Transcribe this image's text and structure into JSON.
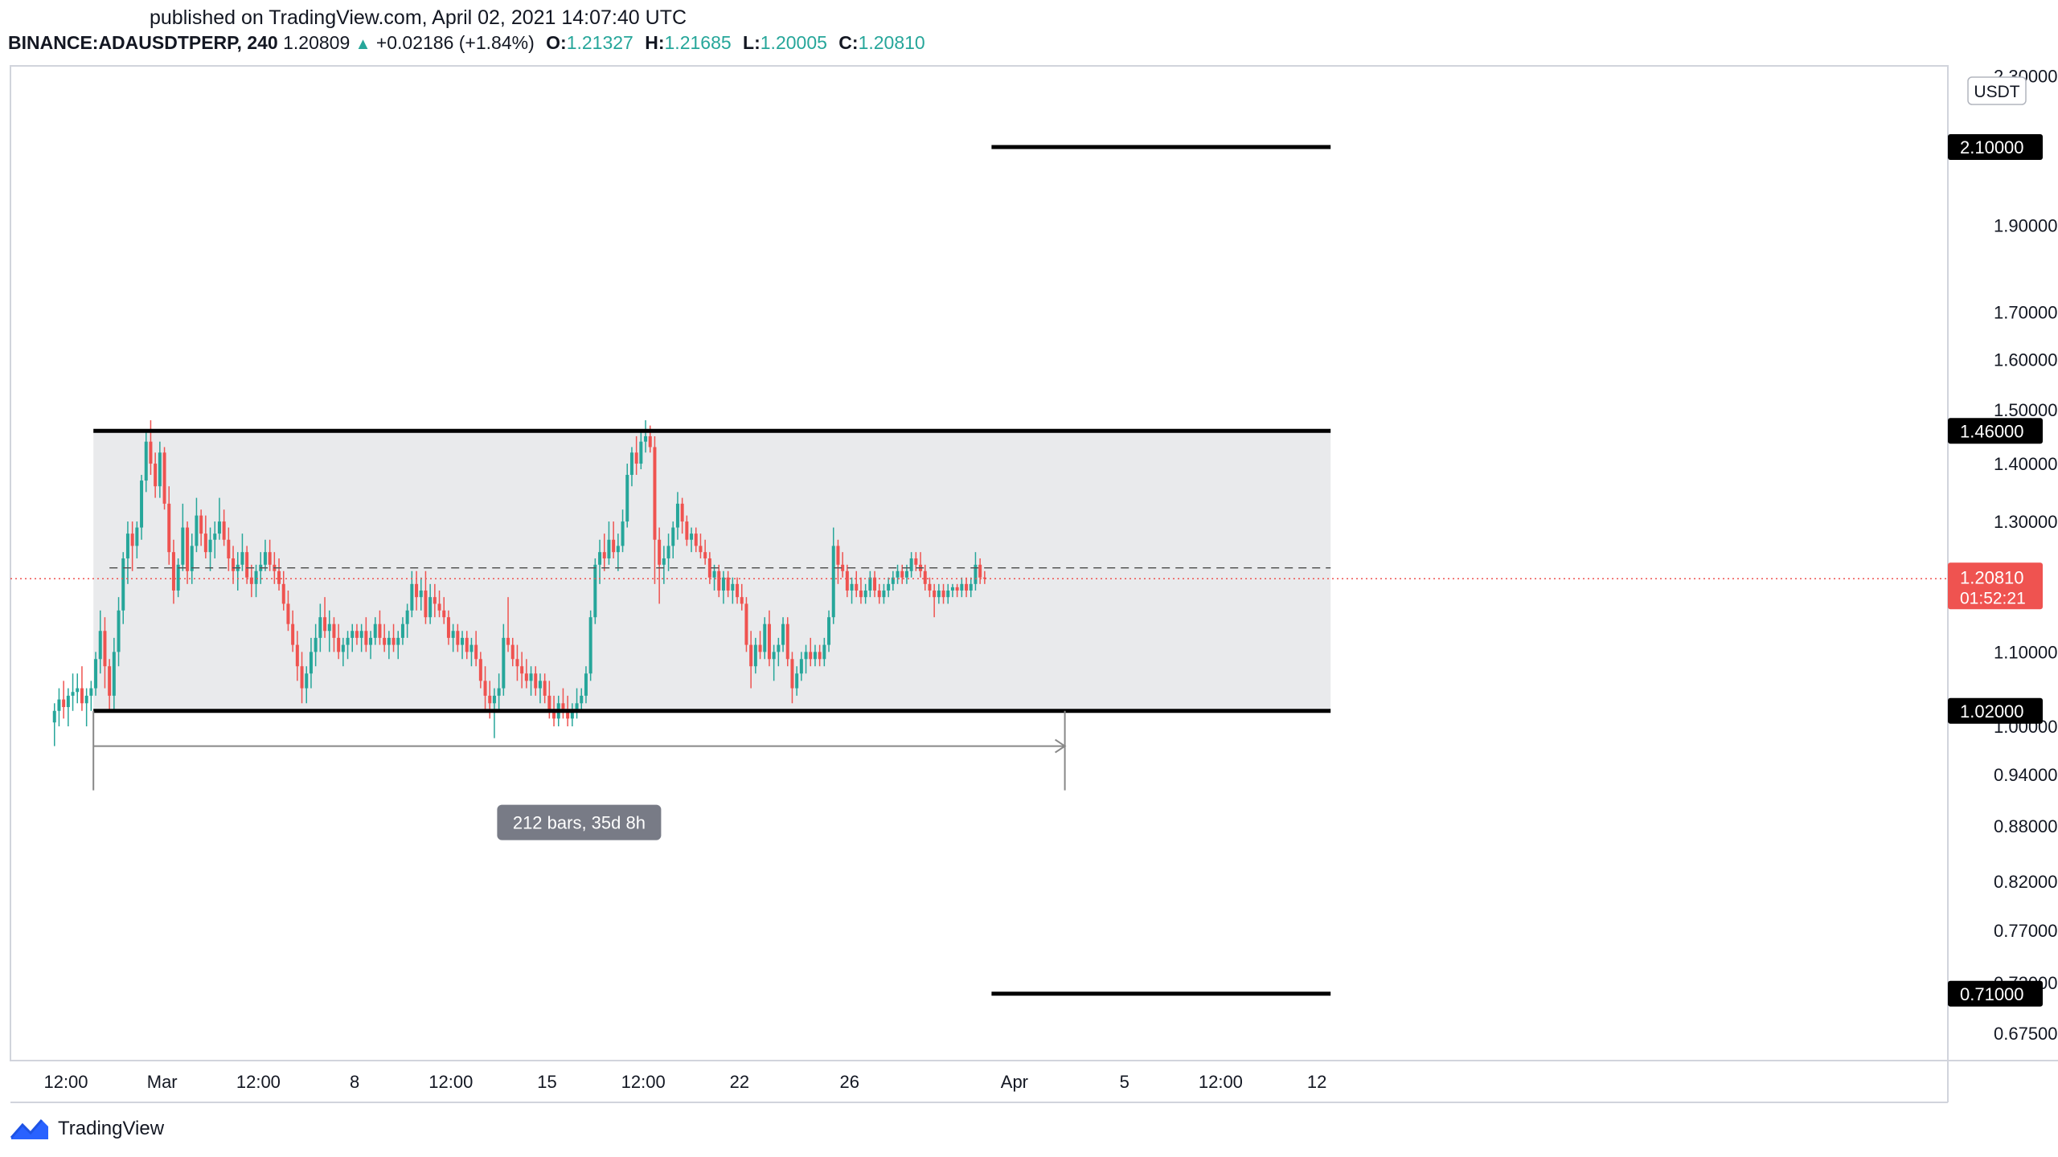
{
  "header": {
    "published": "published on TradingView.com, April 02, 2021 14:07:40 UTC",
    "symbol": "BINANCE:ADAUSDTPERP, 240",
    "last": "1.20809",
    "change": "+0.02186 (+1.84%)",
    "o_label": "O:",
    "o": "1.21327",
    "h_label": "H:",
    "h": "1.21685",
    "l_label": "L:",
    "l": "1.20005",
    "c_label": "C:",
    "c": "1.20810"
  },
  "brand": {
    "name": "TradingView",
    "icon": "tradingview-logo-icon"
  },
  "colors": {
    "up": "#26a69a",
    "down": "#ef5350",
    "level_line": "#000000",
    "range_fill": "#e9eaec",
    "price_label_bg": "#ef5350"
  },
  "chart_data": {
    "type": "candlestick",
    "symbol": "BINANCE:ADAUSDTPERP",
    "interval": "240",
    "currency": "USDT",
    "y_scale": "log",
    "grid": false,
    "y_ticks": [
      "2.30000",
      "1.90000",
      "1.70000",
      "1.60000",
      "1.50000",
      "1.40000",
      "1.30000",
      "1.10000",
      "1.00000",
      "0.94000",
      "0.88000",
      "0.82000",
      "0.77000",
      "0.72000",
      "0.67500"
    ],
    "x_ticks": [
      {
        "label": "12:00",
        "date": "2021-02-25 12:00"
      },
      {
        "label": "Mar",
        "date": "2021-03-01 00:00"
      },
      {
        "label": "12:00",
        "date": "2021-03-04 12:00"
      },
      {
        "label": "8",
        "date": "2021-03-08 00:00"
      },
      {
        "label": "12:00",
        "date": "2021-03-11 12:00"
      },
      {
        "label": "15",
        "date": "2021-03-15 00:00"
      },
      {
        "label": "12:00",
        "date": "2021-03-18 12:00"
      },
      {
        "label": "22",
        "date": "2021-03-22 00:00"
      },
      {
        "label": "26",
        "date": "2021-03-26 00:00"
      },
      {
        "label": "Apr",
        "date": "2021-04-01 00:00"
      },
      {
        "label": "5",
        "date": "2021-04-05 00:00"
      },
      {
        "label": "12:00",
        "date": "2021-04-08 12:00"
      },
      {
        "label": "12",
        "date": "2021-04-12 00:00"
      }
    ],
    "levels": [
      {
        "price": 2.1,
        "label": "2.10000",
        "start": "2021-03-31 04:00",
        "end": "2021-04-12 12:00"
      },
      {
        "price": 1.46,
        "label": "1.46000",
        "start": "2021-02-26 12:00",
        "end": "2021-04-12 12:00"
      },
      {
        "price": 1.02,
        "label": "1.02000",
        "start": "2021-02-26 12:00",
        "end": "2021-04-12 12:00"
      },
      {
        "price": 0.71,
        "label": "0.71000",
        "start": "2021-03-31 04:00",
        "end": "2021-04-12 12:00"
      }
    ],
    "range_box": {
      "top": 1.46,
      "bottom": 1.02,
      "start": "2021-02-26 12:00",
      "end": "2021-04-12 12:00"
    },
    "current_price": {
      "value": 1.2081,
      "label": "1.20810",
      "countdown": "01:52:21"
    },
    "measure": {
      "start": "2021-02-26 12:00",
      "end": "2021-04-02 20:00",
      "price": 0.975,
      "label": "212 bars, 35d 8h"
    },
    "candles_ohlc": [
      [
        1.005,
        1.03,
        0.975,
        1.02
      ],
      [
        1.02,
        1.05,
        1.0,
        1.035
      ],
      [
        1.035,
        1.06,
        1.01,
        1.025
      ],
      [
        1.025,
        1.05,
        1.0,
        1.04
      ],
      [
        1.04,
        1.07,
        1.02,
        1.045
      ],
      [
        1.045,
        1.07,
        1.03,
        1.05
      ],
      [
        1.05,
        1.08,
        1.02,
        1.03
      ],
      [
        1.03,
        1.05,
        1.0,
        1.04
      ],
      [
        1.04,
        1.06,
        1.02,
        1.05
      ],
      [
        1.05,
        1.1,
        1.04,
        1.09
      ],
      [
        1.09,
        1.16,
        1.07,
        1.13
      ],
      [
        1.13,
        1.15,
        1.05,
        1.08
      ],
      [
        1.08,
        1.09,
        1.02,
        1.04
      ],
      [
        1.04,
        1.12,
        1.02,
        1.1
      ],
      [
        1.1,
        1.18,
        1.08,
        1.16
      ],
      [
        1.16,
        1.25,
        1.14,
        1.24
      ],
      [
        1.24,
        1.3,
        1.2,
        1.28
      ],
      [
        1.28,
        1.3,
        1.22,
        1.26
      ],
      [
        1.26,
        1.3,
        1.24,
        1.29
      ],
      [
        1.29,
        1.38,
        1.27,
        1.37
      ],
      [
        1.37,
        1.46,
        1.35,
        1.44
      ],
      [
        1.44,
        1.48,
        1.38,
        1.4
      ],
      [
        1.4,
        1.42,
        1.34,
        1.36
      ],
      [
        1.36,
        1.44,
        1.34,
        1.42
      ],
      [
        1.42,
        1.43,
        1.32,
        1.33
      ],
      [
        1.33,
        1.36,
        1.23,
        1.25
      ],
      [
        1.25,
        1.27,
        1.17,
        1.19
      ],
      [
        1.19,
        1.24,
        1.18,
        1.23
      ],
      [
        1.23,
        1.33,
        1.22,
        1.29
      ],
      [
        1.29,
        1.3,
        1.2,
        1.22
      ],
      [
        1.22,
        1.28,
        1.2,
        1.26
      ],
      [
        1.26,
        1.34,
        1.25,
        1.31
      ],
      [
        1.31,
        1.32,
        1.26,
        1.28
      ],
      [
        1.28,
        1.31,
        1.24,
        1.25
      ],
      [
        1.25,
        1.29,
        1.22,
        1.27
      ],
      [
        1.27,
        1.3,
        1.24,
        1.28
      ],
      [
        1.28,
        1.34,
        1.27,
        1.3
      ],
      [
        1.3,
        1.32,
        1.26,
        1.27
      ],
      [
        1.27,
        1.29,
        1.22,
        1.24
      ],
      [
        1.24,
        1.26,
        1.2,
        1.22
      ],
      [
        1.22,
        1.25,
        1.19,
        1.23
      ],
      [
        1.23,
        1.28,
        1.22,
        1.25
      ],
      [
        1.25,
        1.26,
        1.2,
        1.21
      ],
      [
        1.21,
        1.23,
        1.18,
        1.2
      ],
      [
        1.2,
        1.23,
        1.18,
        1.22
      ],
      [
        1.22,
        1.25,
        1.2,
        1.23
      ],
      [
        1.23,
        1.27,
        1.22,
        1.25
      ],
      [
        1.25,
        1.27,
        1.22,
        1.23
      ],
      [
        1.23,
        1.25,
        1.2,
        1.22
      ],
      [
        1.22,
        1.24,
        1.19,
        1.2
      ],
      [
        1.2,
        1.22,
        1.16,
        1.17
      ],
      [
        1.17,
        1.19,
        1.13,
        1.14
      ],
      [
        1.14,
        1.16,
        1.1,
        1.11
      ],
      [
        1.11,
        1.13,
        1.06,
        1.08
      ],
      [
        1.08,
        1.1,
        1.03,
        1.05
      ],
      [
        1.05,
        1.08,
        1.03,
        1.07
      ],
      [
        1.07,
        1.12,
        1.05,
        1.1
      ],
      [
        1.1,
        1.14,
        1.08,
        1.12
      ],
      [
        1.12,
        1.17,
        1.1,
        1.15
      ],
      [
        1.15,
        1.18,
        1.12,
        1.13
      ],
      [
        1.13,
        1.16,
        1.1,
        1.14
      ],
      [
        1.14,
        1.15,
        1.1,
        1.12
      ],
      [
        1.12,
        1.14,
        1.09,
        1.1
      ],
      [
        1.1,
        1.12,
        1.08,
        1.11
      ],
      [
        1.11,
        1.13,
        1.09,
        1.12
      ],
      [
        1.12,
        1.14,
        1.1,
        1.13
      ],
      [
        1.13,
        1.14,
        1.11,
        1.12
      ],
      [
        1.12,
        1.14,
        1.1,
        1.13
      ],
      [
        1.13,
        1.15,
        1.1,
        1.11
      ],
      [
        1.11,
        1.13,
        1.09,
        1.12
      ],
      [
        1.12,
        1.15,
        1.11,
        1.14
      ],
      [
        1.14,
        1.16,
        1.11,
        1.12
      ],
      [
        1.12,
        1.14,
        1.1,
        1.11
      ],
      [
        1.11,
        1.13,
        1.09,
        1.12
      ],
      [
        1.12,
        1.14,
        1.1,
        1.11
      ],
      [
        1.11,
        1.13,
        1.09,
        1.12
      ],
      [
        1.12,
        1.15,
        1.11,
        1.14
      ],
      [
        1.14,
        1.17,
        1.12,
        1.16
      ],
      [
        1.16,
        1.22,
        1.15,
        1.2
      ],
      [
        1.2,
        1.22,
        1.16,
        1.18
      ],
      [
        1.18,
        1.21,
        1.16,
        1.19
      ],
      [
        1.19,
        1.22,
        1.14,
        1.15
      ],
      [
        1.15,
        1.2,
        1.14,
        1.18
      ],
      [
        1.18,
        1.2,
        1.15,
        1.17
      ],
      [
        1.17,
        1.19,
        1.15,
        1.16
      ],
      [
        1.16,
        1.18,
        1.14,
        1.15
      ],
      [
        1.15,
        1.16,
        1.11,
        1.12
      ],
      [
        1.12,
        1.14,
        1.1,
        1.13
      ],
      [
        1.13,
        1.14,
        1.1,
        1.11
      ],
      [
        1.11,
        1.13,
        1.09,
        1.12
      ],
      [
        1.12,
        1.13,
        1.09,
        1.1
      ],
      [
        1.1,
        1.12,
        1.08,
        1.11
      ],
      [
        1.11,
        1.13,
        1.08,
        1.09
      ],
      [
        1.09,
        1.1,
        1.05,
        1.06
      ],
      [
        1.06,
        1.08,
        1.02,
        1.04
      ],
      [
        1.04,
        1.06,
        1.01,
        1.03
      ],
      [
        1.03,
        1.05,
        0.985,
        1.04
      ],
      [
        1.04,
        1.07,
        1.02,
        1.05
      ],
      [
        1.05,
        1.14,
        1.04,
        1.12
      ],
      [
        1.12,
        1.18,
        1.1,
        1.11
      ],
      [
        1.11,
        1.12,
        1.08,
        1.09
      ],
      [
        1.09,
        1.11,
        1.06,
        1.08
      ],
      [
        1.08,
        1.1,
        1.05,
        1.07
      ],
      [
        1.07,
        1.09,
        1.05,
        1.06
      ],
      [
        1.06,
        1.08,
        1.04,
        1.07
      ],
      [
        1.07,
        1.08,
        1.04,
        1.05
      ],
      [
        1.05,
        1.07,
        1.03,
        1.06
      ],
      [
        1.06,
        1.07,
        1.03,
        1.04
      ],
      [
        1.04,
        1.06,
        1.01,
        1.02
      ],
      [
        1.02,
        1.04,
        1.0,
        1.01
      ],
      [
        1.01,
        1.04,
        1.0,
        1.03
      ],
      [
        1.03,
        1.05,
        1.01,
        1.02
      ],
      [
        1.02,
        1.04,
        1.0,
        1.01
      ],
      [
        1.01,
        1.03,
        1.0,
        1.02
      ],
      [
        1.02,
        1.05,
        1.01,
        1.03
      ],
      [
        1.03,
        1.05,
        1.02,
        1.04
      ],
      [
        1.04,
        1.08,
        1.03,
        1.07
      ],
      [
        1.07,
        1.16,
        1.06,
        1.15
      ],
      [
        1.15,
        1.24,
        1.14,
        1.23
      ],
      [
        1.23,
        1.27,
        1.2,
        1.25
      ],
      [
        1.25,
        1.28,
        1.22,
        1.24
      ],
      [
        1.24,
        1.3,
        1.23,
        1.27
      ],
      [
        1.27,
        1.3,
        1.24,
        1.25
      ],
      [
        1.25,
        1.28,
        1.22,
        1.26
      ],
      [
        1.26,
        1.32,
        1.25,
        1.3
      ],
      [
        1.3,
        1.4,
        1.29,
        1.38
      ],
      [
        1.38,
        1.43,
        1.36,
        1.42
      ],
      [
        1.42,
        1.45,
        1.38,
        1.4
      ],
      [
        1.4,
        1.46,
        1.39,
        1.44
      ],
      [
        1.44,
        1.48,
        1.42,
        1.45
      ],
      [
        1.45,
        1.47,
        1.42,
        1.43
      ],
      [
        1.43,
        1.45,
        1.2,
        1.27
      ],
      [
        1.27,
        1.29,
        1.17,
        1.23
      ],
      [
        1.23,
        1.26,
        1.2,
        1.24
      ],
      [
        1.24,
        1.28,
        1.22,
        1.26
      ],
      [
        1.26,
        1.3,
        1.24,
        1.29
      ],
      [
        1.29,
        1.35,
        1.27,
        1.33
      ],
      [
        1.33,
        1.34,
        1.28,
        1.3
      ],
      [
        1.3,
        1.31,
        1.26,
        1.27
      ],
      [
        1.27,
        1.29,
        1.25,
        1.28
      ],
      [
        1.28,
        1.29,
        1.25,
        1.26
      ],
      [
        1.26,
        1.28,
        1.24,
        1.25
      ],
      [
        1.25,
        1.27,
        1.23,
        1.24
      ],
      [
        1.24,
        1.25,
        1.2,
        1.21
      ],
      [
        1.21,
        1.23,
        1.19,
        1.22
      ],
      [
        1.22,
        1.23,
        1.18,
        1.19
      ],
      [
        1.19,
        1.22,
        1.17,
        1.21
      ],
      [
        1.21,
        1.22,
        1.18,
        1.19
      ],
      [
        1.19,
        1.21,
        1.17,
        1.2
      ],
      [
        1.2,
        1.21,
        1.17,
        1.18
      ],
      [
        1.18,
        1.2,
        1.16,
        1.17
      ],
      [
        1.17,
        1.18,
        1.1,
        1.11
      ],
      [
        1.11,
        1.13,
        1.05,
        1.08
      ],
      [
        1.08,
        1.12,
        1.07,
        1.11
      ],
      [
        1.11,
        1.13,
        1.09,
        1.1
      ],
      [
        1.1,
        1.15,
        1.09,
        1.14
      ],
      [
        1.14,
        1.16,
        1.08,
        1.09
      ],
      [
        1.09,
        1.11,
        1.06,
        1.1
      ],
      [
        1.1,
        1.12,
        1.08,
        1.11
      ],
      [
        1.11,
        1.15,
        1.1,
        1.14
      ],
      [
        1.14,
        1.15,
        1.08,
        1.09
      ],
      [
        1.09,
        1.1,
        1.03,
        1.05
      ],
      [
        1.05,
        1.08,
        1.04,
        1.07
      ],
      [
        1.07,
        1.1,
        1.06,
        1.09
      ],
      [
        1.09,
        1.11,
        1.07,
        1.1
      ],
      [
        1.1,
        1.12,
        1.08,
        1.09
      ],
      [
        1.09,
        1.11,
        1.08,
        1.1
      ],
      [
        1.1,
        1.11,
        1.08,
        1.09
      ],
      [
        1.09,
        1.12,
        1.08,
        1.11
      ],
      [
        1.11,
        1.16,
        1.1,
        1.15
      ],
      [
        1.15,
        1.29,
        1.14,
        1.26
      ],
      [
        1.26,
        1.27,
        1.2,
        1.23
      ],
      [
        1.23,
        1.25,
        1.21,
        1.22
      ],
      [
        1.22,
        1.23,
        1.18,
        1.19
      ],
      [
        1.19,
        1.21,
        1.17,
        1.2
      ],
      [
        1.2,
        1.22,
        1.18,
        1.19
      ],
      [
        1.19,
        1.21,
        1.17,
        1.18
      ],
      [
        1.18,
        1.2,
        1.17,
        1.19
      ],
      [
        1.19,
        1.22,
        1.18,
        1.21
      ],
      [
        1.21,
        1.22,
        1.18,
        1.19
      ],
      [
        1.19,
        1.2,
        1.17,
        1.18
      ],
      [
        1.18,
        1.2,
        1.17,
        1.19
      ],
      [
        1.19,
        1.21,
        1.18,
        1.2
      ],
      [
        1.2,
        1.22,
        1.19,
        1.21
      ],
      [
        1.21,
        1.23,
        1.2,
        1.22
      ],
      [
        1.22,
        1.23,
        1.2,
        1.21
      ],
      [
        1.21,
        1.23,
        1.2,
        1.22
      ],
      [
        1.22,
        1.25,
        1.21,
        1.24
      ],
      [
        1.24,
        1.25,
        1.22,
        1.23
      ],
      [
        1.23,
        1.25,
        1.21,
        1.22
      ],
      [
        1.22,
        1.23,
        1.19,
        1.2
      ],
      [
        1.2,
        1.21,
        1.18,
        1.19
      ],
      [
        1.19,
        1.2,
        1.15,
        1.18
      ],
      [
        1.18,
        1.2,
        1.17,
        1.19
      ],
      [
        1.19,
        1.2,
        1.17,
        1.18
      ],
      [
        1.18,
        1.2,
        1.17,
        1.19
      ],
      [
        1.19,
        1.2,
        1.18,
        1.195
      ],
      [
        1.195,
        1.2,
        1.18,
        1.19
      ],
      [
        1.19,
        1.21,
        1.18,
        1.2
      ],
      [
        1.2,
        1.21,
        1.18,
        1.19
      ],
      [
        1.19,
        1.21,
        1.18,
        1.2
      ],
      [
        1.2,
        1.25,
        1.19,
        1.23
      ],
      [
        1.23,
        1.24,
        1.2,
        1.21
      ],
      [
        1.21,
        1.22,
        1.2,
        1.2081
      ]
    ]
  }
}
